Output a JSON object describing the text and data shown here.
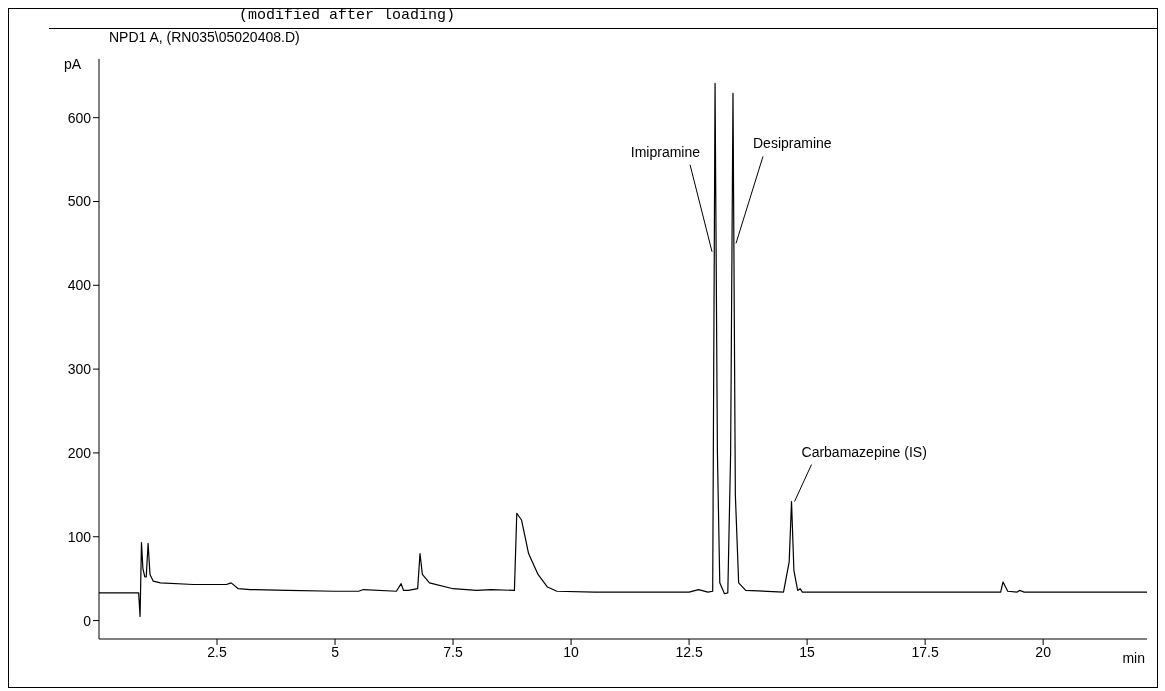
{
  "chart_data": {
    "type": "line",
    "title": "NPD1 A, (RN035\\05020408.D)",
    "xlabel": "min",
    "ylabel": "pA",
    "annotations": [
      "(modified after loading)",
      {
        "text": "Imipramine",
        "x": 13.05,
        "y": 440
      },
      {
        "text": "Desipramine",
        "x": 13.43,
        "y": 450
      },
      {
        "text": "Carbamazepine (IS)",
        "x": 14.67,
        "y": 142
      }
    ],
    "xlim": [
      0,
      22.2
    ],
    "ylim": [
      -22,
      670
    ],
    "xticks": [
      2.5,
      5,
      7.5,
      10,
      12.5,
      15,
      17.5,
      20
    ],
    "yticks": [
      0,
      100,
      200,
      300,
      400,
      500,
      600
    ],
    "marker": "none",
    "line_style": "solid",
    "series": [
      {
        "color": "#000000",
        "x": [
          0,
          0.8,
          0.84,
          0.87,
          0.9,
          0.93,
          0.97,
          1.0,
          1.04,
          1.08,
          1.15,
          1.3,
          2.0,
          2.7,
          2.8,
          2.95,
          3.2,
          4.0,
          5.0,
          5.5,
          5.6,
          6.3,
          6.4,
          6.45,
          6.55,
          6.75,
          6.8,
          6.85,
          7.0,
          7.5,
          8.0,
          8.3,
          8.8,
          8.85,
          8.95,
          9.1,
          9.3,
          9.5,
          9.7,
          10.5,
          12.5,
          12.7,
          12.9,
          13.0,
          13.05,
          13.1,
          13.15,
          13.25,
          13.32,
          13.38,
          13.43,
          13.48,
          13.55,
          13.7,
          14.5,
          14.62,
          14.67,
          14.72,
          14.8,
          14.85,
          14.9,
          19.1,
          19.15,
          19.25,
          19.45,
          19.5,
          19.6,
          22.2
        ],
        "values": [
          33,
          33,
          33,
          5,
          93,
          62,
          52,
          52,
          92,
          55,
          47,
          45,
          43,
          43,
          45,
          38,
          37,
          36,
          35,
          35,
          37,
          35,
          44,
          36,
          36,
          38,
          80,
          55,
          45,
          38,
          36,
          37,
          36,
          128,
          120,
          80,
          55,
          40,
          35,
          34,
          34,
          37,
          34,
          35,
          641,
          200,
          45,
          32,
          33,
          200,
          629,
          150,
          45,
          36,
          34,
          70,
          142,
          60,
          36,
          38,
          34,
          34,
          46,
          35,
          34,
          36,
          34,
          34
        ]
      }
    ]
  }
}
